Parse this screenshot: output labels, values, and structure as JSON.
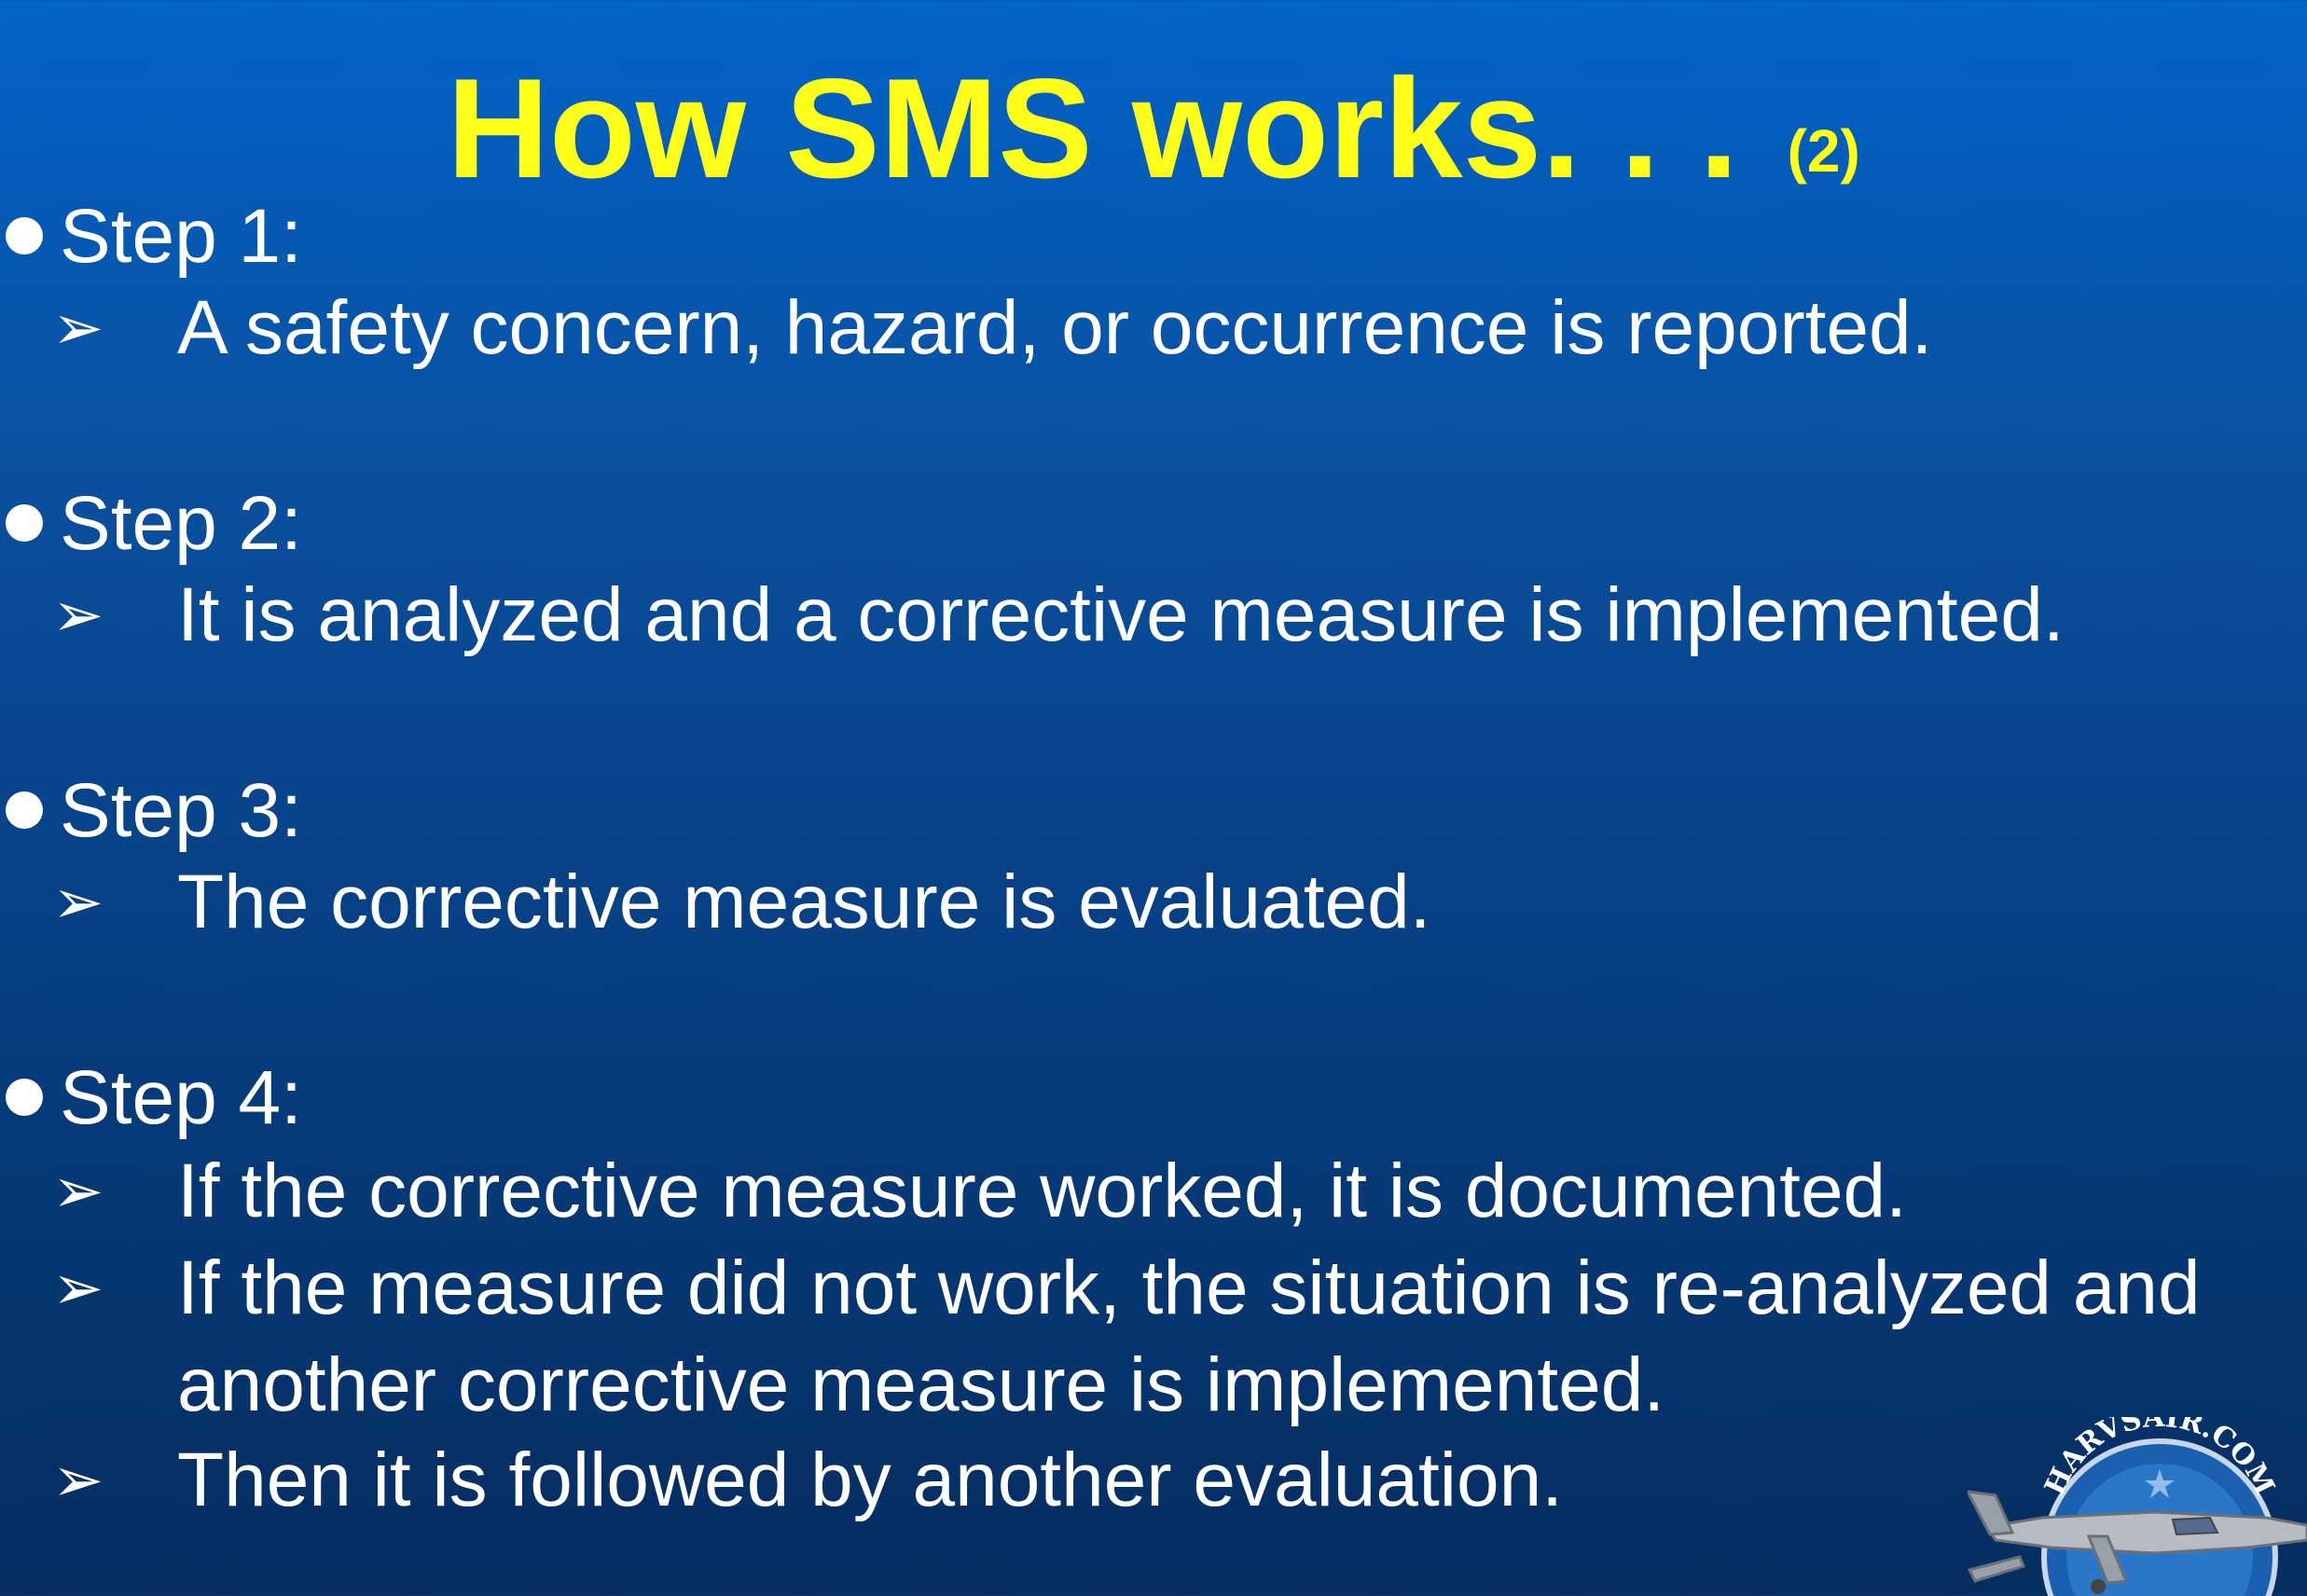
{
  "title": {
    "main": "How SMS works. . .",
    "suffix": "(2)"
  },
  "steps": [
    {
      "label": "Step 1:",
      "items": [
        "A safety concern, hazard, or occurrence is reported."
      ]
    },
    {
      "label": "Step 2:",
      "items": [
        "It is analyzed and a corrective measure is implemented."
      ]
    },
    {
      "label": "Step 3:",
      "items": [
        "The corrective measure is evaluated."
      ]
    },
    {
      "label": "Step 4:",
      "items": [
        "If the corrective measure worked, it is documented.",
        "If the measure did not work, the situation is re-analyzed and another corrective measure is implemented.",
        "Then it is followed by another evaluation."
      ]
    }
  ],
  "logo": {
    "text": "HARVSAIR.COM"
  },
  "colors": {
    "title": "#ffff1a",
    "text": "#ffffff",
    "background_top": "#0263c8",
    "background_bottom": "#052d60"
  }
}
